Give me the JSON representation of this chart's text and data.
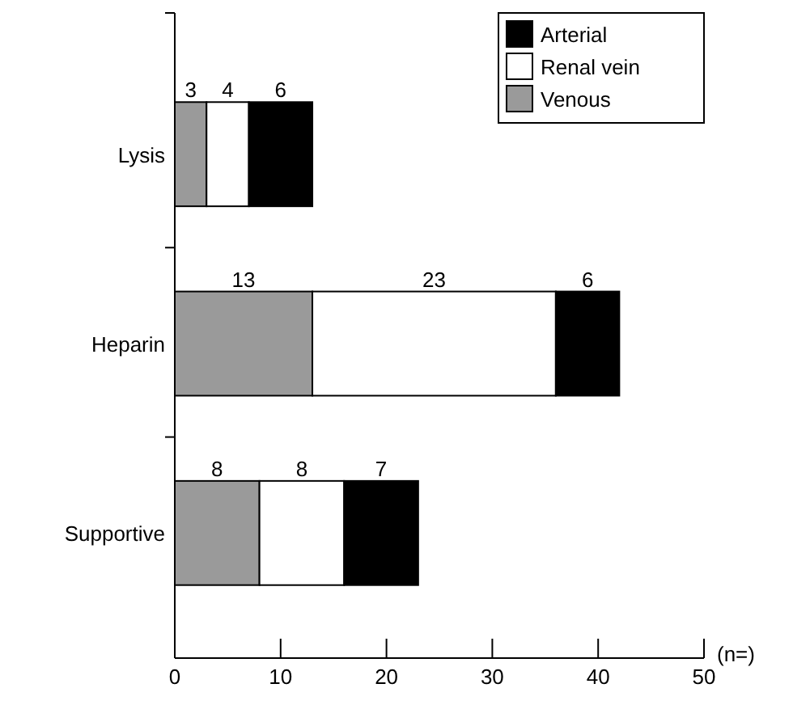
{
  "chart_data": {
    "type": "bar",
    "orientation": "horizontal",
    "stacked": true,
    "categories": [
      "Lysis",
      "Heparin",
      "Supportive"
    ],
    "series": [
      {
        "name": "Venous",
        "color": "#9a9a9a",
        "values": [
          3,
          13,
          8
        ]
      },
      {
        "name": "Renal vein",
        "color": "#ffffff",
        "values": [
          4,
          23,
          8
        ]
      },
      {
        "name": "Arterial",
        "color": "#000000",
        "values": [
          6,
          6,
          7
        ]
      }
    ],
    "xlim": [
      0,
      50
    ],
    "xticks": [
      0,
      10,
      20,
      30,
      40,
      50
    ],
    "xlabel": "(n=)",
    "data_labels": true,
    "legend": "top right",
    "grid": false
  }
}
